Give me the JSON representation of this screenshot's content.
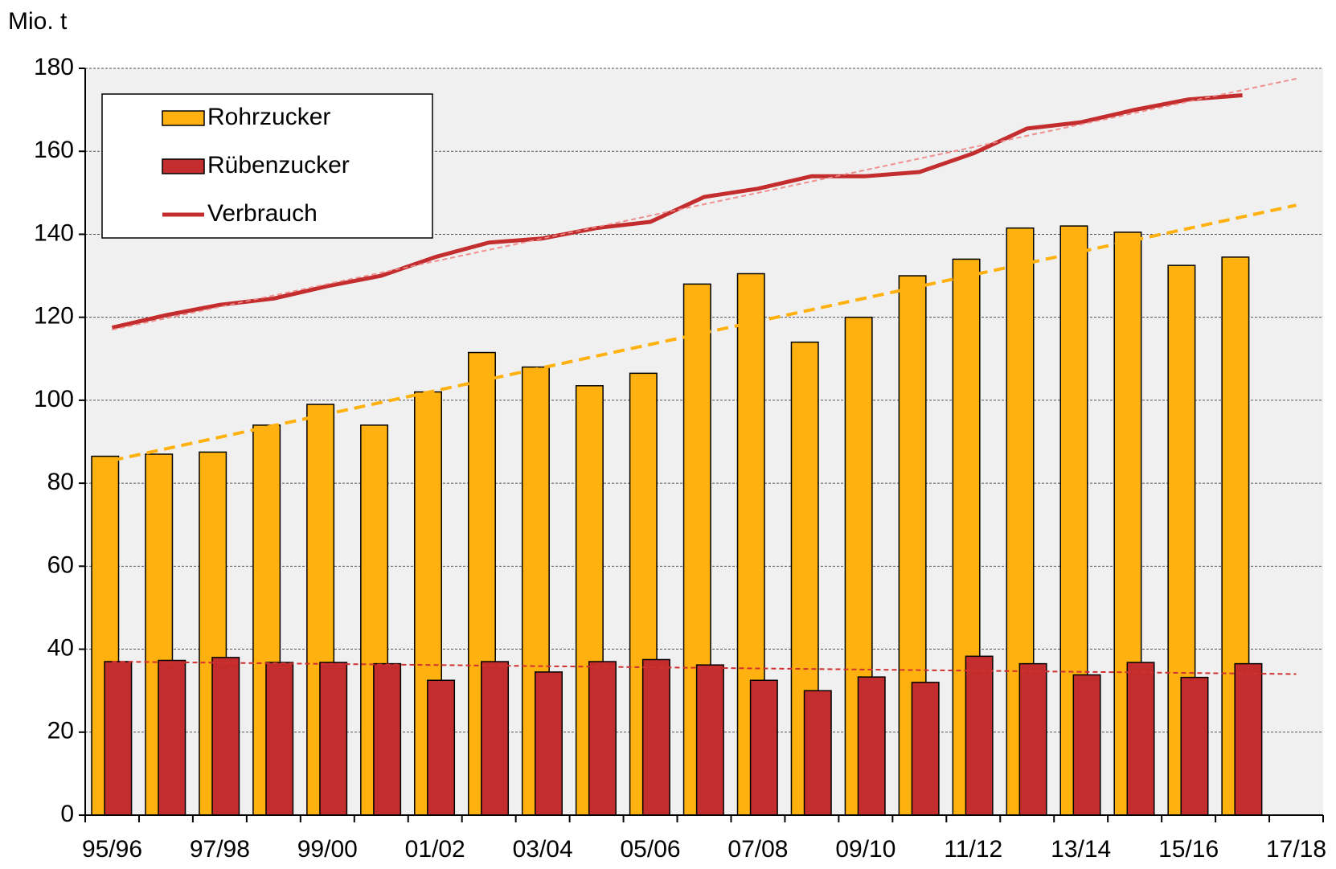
{
  "chart_data": {
    "type": "bar",
    "y_label": "Mio. t",
    "categories": [
      "95/96",
      null,
      "97/98",
      null,
      "99/00",
      null,
      "01/02",
      null,
      "03/04",
      null,
      "05/06",
      null,
      "07/08",
      null,
      "09/10",
      null,
      "11/12",
      null,
      "13/14",
      null,
      "15/16",
      null,
      "17/18"
    ],
    "series": [
      {
        "name": "Rohrzucker",
        "color": "#ffb10f",
        "type": "bar",
        "values": [
          86.5,
          87,
          87.5,
          94,
          99,
          94,
          102,
          111.5,
          108,
          103.5,
          106.5,
          128,
          130.5,
          114,
          120,
          130,
          134,
          141.5,
          142,
          140.5,
          132.5,
          134.5,
          null
        ]
      },
      {
        "name": "Rübenzucker",
        "color": "#c32d2e",
        "type": "bar",
        "values": [
          37,
          37.3,
          38,
          36.8,
          36.8,
          36.5,
          32.5,
          37,
          34.5,
          37,
          37.5,
          36.2,
          32.5,
          30,
          33.3,
          32,
          38.3,
          36.5,
          33.8,
          36.8,
          33.2,
          36.5,
          null
        ]
      },
      {
        "name": "Verbrauch",
        "color": "#c32d2e",
        "type": "line",
        "values": [
          117.5,
          120.5,
          123,
          124.5,
          127.5,
          130,
          134.5,
          138,
          139,
          141.5,
          143,
          149,
          151,
          154,
          154,
          155,
          159.5,
          165.5,
          167,
          170,
          172.5,
          173.5,
          null
        ]
      }
    ],
    "trendlines": [
      {
        "color": "#ffb10f",
        "values": [
          85.5,
          147
        ]
      },
      {
        "color": "#d03030",
        "values": [
          37,
          34
        ]
      },
      {
        "color": "#f09090",
        "values": [
          117,
          177.5
        ]
      }
    ],
    "ylim": [
      0,
      180
    ],
    "yticks": [
      0,
      20,
      40,
      60,
      80,
      100,
      120,
      140,
      160,
      180
    ],
    "grid": true,
    "legend": "top-left"
  }
}
